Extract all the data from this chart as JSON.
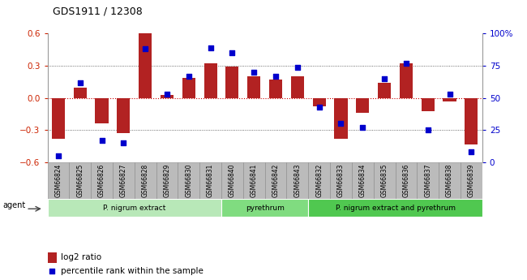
{
  "title": "GDS1911 / 12308",
  "samples": [
    "GSM66824",
    "GSM66825",
    "GSM66826",
    "GSM66827",
    "GSM66828",
    "GSM66829",
    "GSM66830",
    "GSM66831",
    "GSM66840",
    "GSM66841",
    "GSM66842",
    "GSM66843",
    "GSM66832",
    "GSM66833",
    "GSM66834",
    "GSM66835",
    "GSM66836",
    "GSM66837",
    "GSM66838",
    "GSM66839"
  ],
  "log2_ratio": [
    -0.38,
    0.1,
    -0.24,
    -0.33,
    0.6,
    0.03,
    0.19,
    0.32,
    0.29,
    0.2,
    0.17,
    0.2,
    -0.08,
    -0.38,
    -0.14,
    0.14,
    0.32,
    -0.12,
    -0.03,
    -0.43
  ],
  "percentile": [
    5,
    62,
    17,
    15,
    88,
    53,
    67,
    89,
    85,
    70,
    67,
    74,
    43,
    30,
    27,
    65,
    77,
    25,
    53,
    8
  ],
  "groups": [
    {
      "label": "P. nigrum extract",
      "start": 0,
      "end": 7,
      "color": "#b8e8b8"
    },
    {
      "label": "pyrethrum",
      "start": 8,
      "end": 11,
      "color": "#80dc80"
    },
    {
      "label": "P. nigrum extract and pyrethrum",
      "start": 12,
      "end": 19,
      "color": "#50c850"
    }
  ],
  "bar_color": "#b22222",
  "dot_color": "#0000cc",
  "ylim_left": [
    -0.6,
    0.6
  ],
  "ylim_right": [
    0,
    100
  ],
  "yticks_left": [
    -0.6,
    -0.3,
    0.0,
    0.3,
    0.6
  ],
  "yticks_right": [
    0,
    25,
    50,
    75,
    100
  ],
  "ylabel_left_color": "#cc2200",
  "ylabel_right_color": "#0000cc",
  "hline_color": "#cc0000",
  "dotted_color": "#444444",
  "agent_label": "agent",
  "legend_bar_label": "log2 ratio",
  "legend_dot_label": "percentile rank within the sample",
  "sample_box_color": "#bbbbbb",
  "sample_box_border": "#888888"
}
